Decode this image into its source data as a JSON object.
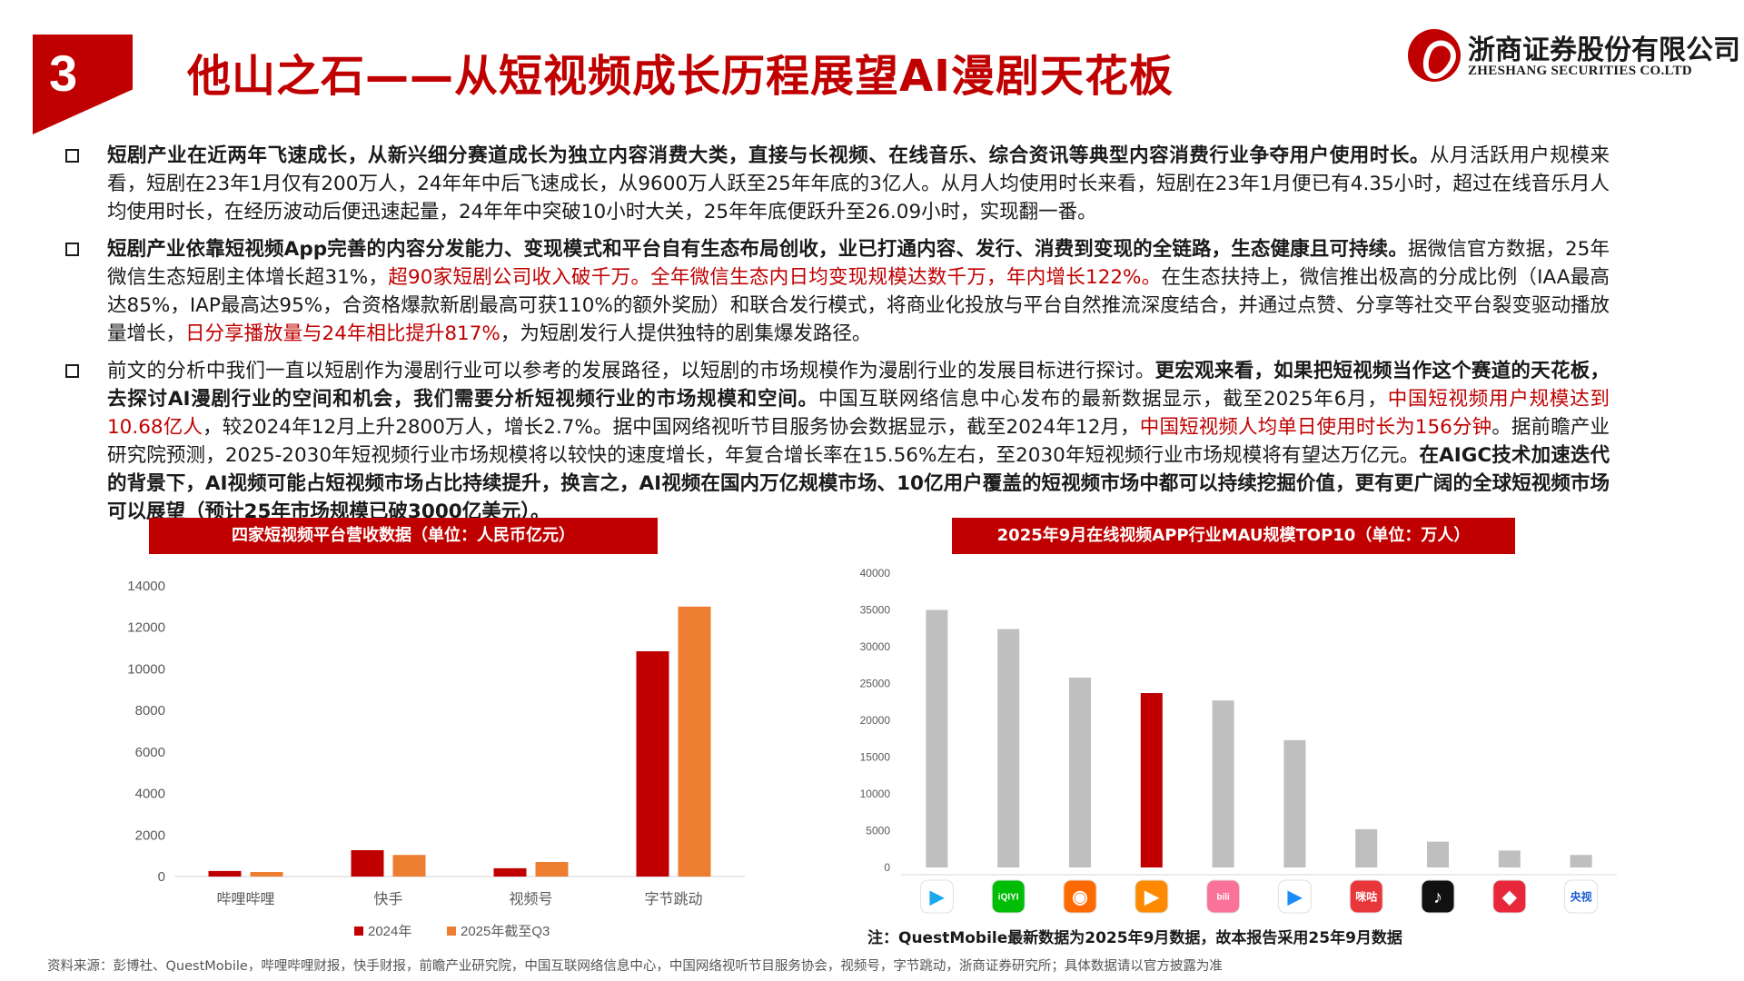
{
  "header": {
    "section_number": "3",
    "title": "他山之石——从短视频成长历程展望AI漫剧天花板",
    "logo_cn": "浙商证券股份有限公司",
    "logo_en": "ZHESHANG SECURITIES CO.LTD"
  },
  "bullets": [
    {
      "segments": [
        {
          "text": "短剧产业在近两年飞速成长，从新兴细分赛道成长为独立内容消费大类，直接与长视频、在线音乐、综合资讯等典型内容消费行业争夺用户使用时长。",
          "style": "bold"
        },
        {
          "text": "从月活跃用户规模来看，短剧在23年1月仅有200万人，24年年中后飞速成长，从9600万人跃至25年年底的3亿人。从月人均使用时长来看，短剧在23年1月便已有4.35小时，超过在线音乐月人均使用时长，在经历波动后便迅速起量，24年年中突破10小时大关，25年年底便跃升至26.09小时，实现翻一番。",
          "style": "normal"
        }
      ]
    },
    {
      "segments": [
        {
          "text": "短剧产业依靠短视频App完善的内容分发能力、变现模式和平台自有生态布局创收，业已打通内容、发行、消费到变现的全链路，生态健康且可持续。",
          "style": "bold"
        },
        {
          "text": "据微信官方数据，25年微信生态短剧主体增长超31%，",
          "style": "normal"
        },
        {
          "text": "超90家短剧公司收入破千万。全年微信生态内日均变现规模达数千万，年内增长122%。",
          "style": "red"
        },
        {
          "text": "在生态扶持上，微信推出极高的分成比例（IAA最高达85%，IAP最高达95%，合资格爆款新剧最高可获110%的额外奖励）和联合发行模式，将商业化投放与平台自然推流深度结合，并通过点赞、分享等社交平台裂变驱动播放量增长，",
          "style": "normal"
        },
        {
          "text": "日分享播放量与24年相比提升817%",
          "style": "red"
        },
        {
          "text": "，为短剧发行人提供独特的剧集爆发路径。",
          "style": "normal"
        }
      ]
    },
    {
      "segments": [
        {
          "text": "前文的分析中我们一直以短剧作为漫剧行业可以参考的发展路径，以短剧的市场规模作为漫剧行业的发展目标进行探讨。",
          "style": "normal"
        },
        {
          "text": "更宏观来看，如果把短视频当作这个赛道的天花板，去探讨AI漫剧行业的空间和机会，我们需要分析短视频行业的市场规模和空间。",
          "style": "bold"
        },
        {
          "text": "中国互联网络信息中心发布的最新数据显示，截至2025年6月，",
          "style": "normal"
        },
        {
          "text": "中国短视频用户规模达到10.68亿人",
          "style": "red"
        },
        {
          "text": "，较2024年12月上升2800万人，增长2.7%。据中国网络视听节目服务协会数据显示，截至2024年12月，",
          "style": "normal"
        },
        {
          "text": "中国短视频人均单日使用时长为156分钟",
          "style": "red"
        },
        {
          "text": "。据前瞻产业研究院预测，2025-2030年短视频行业市场规模将以较快的速度增长，年复合增长率在15.56%左右，至2030年短视频行业市场规模将有望达万亿元。",
          "style": "normal"
        },
        {
          "text": "在AIGC技术加速迭代的背景下，AI视频可能占短视频市场占比持续提升，换言之，AI视频在国内万亿规模市场、10亿用户覆盖的短视频市场中都可以持续挖掘价值，更有更广阔的全球短视频市场可以展望（预计25年市场规模已破3000亿美元）。",
          "style": "bold"
        }
      ]
    }
  ],
  "chart_data": [
    {
      "type": "bar",
      "title": "四家短视频平台营收数据（单位：人民币亿元）",
      "categories": [
        "哔哩哔哩",
        "快手",
        "视频号",
        "字节跳动"
      ],
      "series": [
        {
          "name": "2024年",
          "color": "#c00000",
          "values": [
            268,
            1269,
            400,
            10850
          ]
        },
        {
          "name": "2025年截至Q3",
          "color": "#ed7d31",
          "values": [
            220,
            1040,
            700,
            13000
          ]
        }
      ],
      "ylim": [
        0,
        14000
      ],
      "yticks": [
        0,
        2000,
        4000,
        6000,
        8000,
        10000,
        12000,
        14000
      ],
      "legend": "bottom",
      "grid": false
    },
    {
      "type": "bar",
      "title": "2025年9月在线视频APP行业MAU规模TOP10（单位：万人）",
      "categories": [
        "腾讯视频",
        "爱奇艺",
        "芒果TV",
        "优酷",
        "哔哩哔哩",
        "腾讯微视",
        "咪咕视频",
        "抖音",
        "西瓜视频",
        "央视频"
      ],
      "values": [
        35000,
        32400,
        25800,
        23700,
        22700,
        17300,
        5200,
        3500,
        2300,
        1700
      ],
      "highlight_index": 3,
      "bar_color": "#bfbfbf",
      "highlight_color": "#c00000",
      "ylim": [
        0,
        40000
      ],
      "yticks": [
        0,
        5000,
        10000,
        15000,
        20000,
        25000,
        30000,
        35000,
        40000
      ],
      "grid": false,
      "icons": [
        {
          "name": "tencent-video-icon",
          "bg": "#ffffff",
          "fg": "#1aa7ec",
          "glyph": "▶"
        },
        {
          "name": "iqiyi-icon",
          "bg": "#00be06",
          "fg": "#ffffff",
          "glyph": "iQIYI"
        },
        {
          "name": "mango-tv-icon",
          "bg": "#ff6a00",
          "fg": "#ffffff",
          "glyph": "◉"
        },
        {
          "name": "youku-icon",
          "bg": "#ff8a00",
          "fg": "#ffffff",
          "glyph": "▶"
        },
        {
          "name": "bilibili-icon",
          "bg": "#fb7299",
          "fg": "#ffffff",
          "glyph": "bili"
        },
        {
          "name": "weishi-icon",
          "bg": "#ffffff",
          "fg": "#1d8cf8",
          "glyph": "▶"
        },
        {
          "name": "migu-video-icon",
          "bg": "#e8373a",
          "fg": "#ffffff",
          "glyph": "咪咕"
        },
        {
          "name": "douyin-icon",
          "bg": "#111111",
          "fg": "#ffffff",
          "glyph": "♪"
        },
        {
          "name": "xigua-video-icon",
          "bg": "#e8283a",
          "fg": "#ffffff",
          "glyph": "◆"
        },
        {
          "name": "cctv-video-icon",
          "bg": "#ffffff",
          "fg": "#1f5fd6",
          "glyph": "央视"
        }
      ]
    }
  ],
  "note": "注：QuestMobile最新数据为2025年9月数据，故本报告采用25年9月数据",
  "source": "资料来源：彭博社、QuestMobile，哔哩哔哩财报，快手财报，前瞻产业研究院，中国互联网络信息中心，中国网络视听节目服务协会，视频号，字节跳动，浙商证券研究所；具体数据请以官方披露为准"
}
